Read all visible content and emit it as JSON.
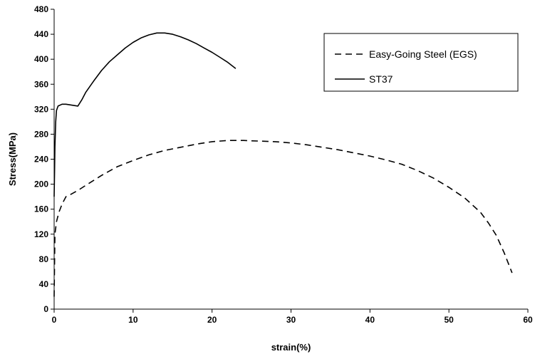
{
  "chart_data": {
    "type": "line",
    "title": "",
    "xlabel": "strain(%)",
    "ylabel": "Stress(MPa)",
    "xlim": [
      0,
      60
    ],
    "ylim": [
      0,
      480
    ],
    "xticks": [
      0,
      10,
      20,
      30,
      40,
      50,
      60
    ],
    "yticks": [
      0,
      40,
      80,
      120,
      160,
      200,
      240,
      280,
      320,
      360,
      400,
      440,
      480
    ],
    "grid": false,
    "legend_position": "top-right",
    "series": [
      {
        "name": "Easy-Going Steel (EGS)",
        "style": "dashed",
        "color": "#000000",
        "x": [
          0,
          0.1,
          0.3,
          0.6,
          1,
          1.5,
          2,
          3,
          4,
          5,
          6,
          8,
          10,
          12,
          14,
          16,
          18,
          20,
          22,
          24,
          26,
          28,
          30,
          32,
          34,
          36,
          38,
          40,
          42,
          44,
          46,
          48,
          50,
          52,
          54,
          55,
          56,
          57,
          58
        ],
        "y": [
          20,
          120,
          140,
          155,
          168,
          180,
          183,
          190,
          198,
          206,
          214,
          228,
          238,
          247,
          254,
          259,
          264,
          268,
          270,
          270,
          269,
          268,
          266,
          263,
          259,
          255,
          250,
          245,
          239,
          232,
          222,
          210,
          195,
          178,
          155,
          138,
          118,
          90,
          58
        ]
      },
      {
        "name": "ST37",
        "style": "solid",
        "color": "#000000",
        "x": [
          0,
          0.05,
          0.1,
          0.2,
          0.3,
          0.5,
          1,
          1.5,
          2,
          2.5,
          3,
          3.5,
          4,
          5,
          6,
          7,
          8,
          9,
          10,
          11,
          12,
          13,
          14,
          15,
          16,
          17,
          18,
          19,
          20,
          21,
          22,
          23
        ],
        "y": [
          180,
          220,
          260,
          300,
          318,
          325,
          328,
          328,
          327,
          326,
          325,
          335,
          347,
          365,
          382,
          396,
          407,
          418,
          427,
          434,
          439,
          442,
          442,
          440,
          436,
          431,
          425,
          418,
          411,
          403,
          395,
          385
        ]
      }
    ]
  }
}
